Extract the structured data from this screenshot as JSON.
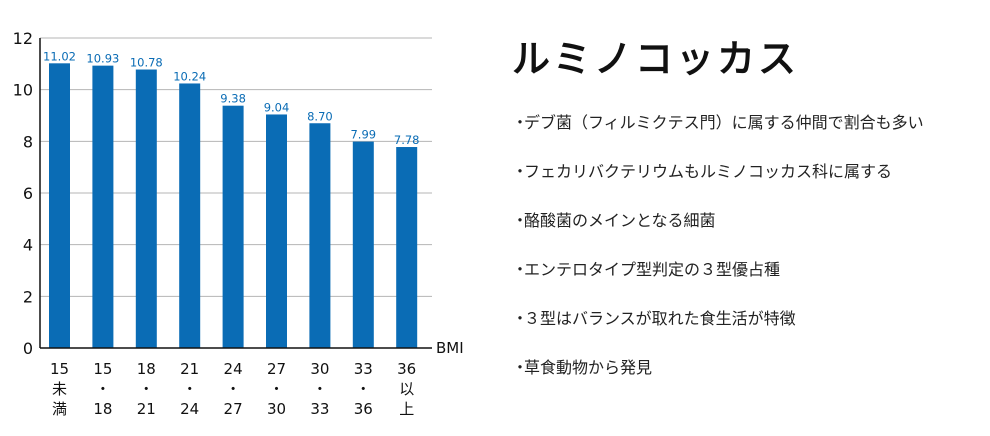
{
  "chart_data": {
    "type": "bar",
    "categories": [
      [
        "15",
        "未",
        "満"
      ],
      [
        "15",
        "・",
        "18"
      ],
      [
        "18",
        "・",
        "21"
      ],
      [
        "21",
        "・",
        "24"
      ],
      [
        "24",
        "・",
        "27"
      ],
      [
        "27",
        "・",
        "30"
      ],
      [
        "30",
        "・",
        "33"
      ],
      [
        "33",
        "・",
        "36"
      ],
      [
        "36",
        "以",
        "上"
      ]
    ],
    "values": [
      11.02,
      10.93,
      10.78,
      10.24,
      9.38,
      9.04,
      8.7,
      7.99,
      7.78
    ],
    "value_labels": [
      "11.02",
      "10.93",
      "10.78",
      "10.24",
      "9.38",
      "9.04",
      "8.70",
      "7.99",
      "7.78"
    ],
    "xlabel": "BMI",
    "ylabel": "",
    "ylim": [
      0,
      12
    ],
    "yticks": [
      0,
      2,
      4,
      6,
      8,
      10,
      12
    ],
    "grid": true,
    "bar_color": "#0a6cb5",
    "label_color": "#0a6cb5"
  },
  "panel": {
    "title": "ルミノコッカス",
    "bullet": "・",
    "points": [
      "デブ菌（フィルミクテス門）に属する仲間で割合も多い",
      "フェカリバクテリウムもルミノコッカス科に属する",
      "酪酸菌のメインとなる細菌",
      "エンテロタイプ型判定の３型優占種",
      "３型はバランスが取れた食生活が特徴",
      "草食動物から発見"
    ]
  }
}
